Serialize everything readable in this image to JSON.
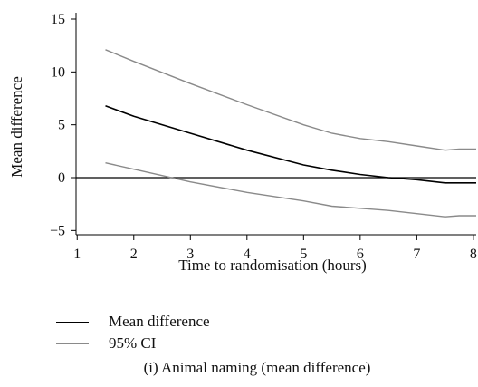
{
  "chart_data": {
    "type": "line",
    "xlabel": "Time to randomisation (hours)",
    "ylabel": "Mean difference",
    "xlim": [
      0.98,
      8.05
    ],
    "ylim": [
      -5.4,
      15.6
    ],
    "xticks": [
      1,
      2,
      3,
      4,
      5,
      6,
      7,
      8
    ],
    "yticks": [
      -5,
      0,
      5,
      10,
      15
    ],
    "xtick_labels": [
      "1",
      "2",
      "3",
      "4",
      "5",
      "6",
      "7",
      "8"
    ],
    "ytick_labels": [
      "−5",
      "0",
      "5",
      "10",
      "15"
    ],
    "reference_line_y": 0,
    "grid": false,
    "legend_position": "bottom-left",
    "series": [
      {
        "name": "Mean difference",
        "color": "#000000",
        "x": [
          1.5,
          2,
          3,
          4,
          5,
          5.5,
          6,
          6.5,
          7,
          7.5,
          8,
          8.05
        ],
        "y": [
          6.8,
          5.8,
          4.2,
          2.6,
          1.2,
          0.7,
          0.3,
          0.0,
          -0.2,
          -0.5,
          -0.5,
          -0.5
        ]
      },
      {
        "name": "95% CI",
        "color": "#8a8a8a",
        "x": [
          1.5,
          2,
          3,
          4,
          5,
          5.5,
          6,
          6.5,
          7,
          7.5,
          7.75,
          8.05
        ],
        "y": [
          12.1,
          11.0,
          8.9,
          6.9,
          5.0,
          4.2,
          3.7,
          3.4,
          3.0,
          2.6,
          2.7,
          2.7
        ]
      },
      {
        "name": "95% CI",
        "color": "#8a8a8a",
        "x": [
          1.5,
          2,
          3,
          4,
          5,
          5.5,
          6,
          6.5,
          7,
          7.5,
          7.75,
          8.05
        ],
        "y": [
          1.4,
          0.8,
          -0.4,
          -1.4,
          -2.2,
          -2.7,
          -2.9,
          -3.1,
          -3.4,
          -3.7,
          -3.6,
          -3.6
        ]
      }
    ]
  },
  "legend": {
    "mean_label": "Mean difference",
    "ci_label": "95% CI"
  },
  "caption": "(i)  Animal naming (mean difference)"
}
